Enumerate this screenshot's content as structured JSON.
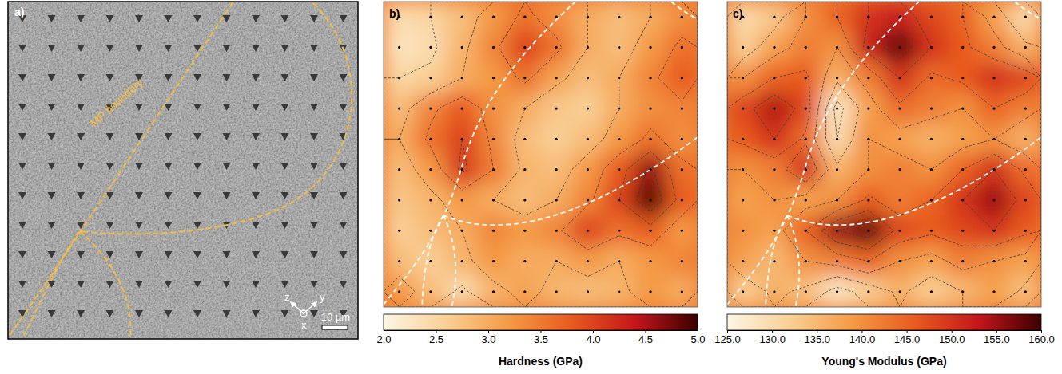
{
  "chart_data": [
    {
      "type": "image",
      "panel_label": "a)",
      "annotations": [
        "MP boundary"
      ],
      "axis_labels": [
        "z",
        "y",
        "x"
      ],
      "scale_bar": "10 µm"
    },
    {
      "type": "heatmap",
      "panel_label": "b)",
      "tick_labels": false,
      "z": [
        [
          2.4,
          2.5,
          2.8,
          3.2,
          3.6,
          3.3,
          3.0,
          2.8,
          3.0,
          3.3
        ],
        [
          2.3,
          2.4,
          2.9,
          3.4,
          4.0,
          3.6,
          3.0,
          2.8,
          3.2,
          3.6
        ],
        [
          2.5,
          2.6,
          3.0,
          3.2,
          3.6,
          3.1,
          2.8,
          3.0,
          3.4,
          3.8
        ],
        [
          2.8,
          3.4,
          3.8,
          3.3,
          3.0,
          2.7,
          2.6,
          3.0,
          3.3,
          3.4
        ],
        [
          3.0,
          3.6,
          4.0,
          3.4,
          2.8,
          2.6,
          2.8,
          3.2,
          3.6,
          3.3
        ],
        [
          2.8,
          3.2,
          4.1,
          3.5,
          2.9,
          2.8,
          3.2,
          3.8,
          4.6,
          3.6
        ],
        [
          2.7,
          2.9,
          3.2,
          3.0,
          2.8,
          3.0,
          3.4,
          4.0,
          4.9,
          3.8
        ],
        [
          2.6,
          2.8,
          3.0,
          3.4,
          3.2,
          3.4,
          4.0,
          3.6,
          3.8,
          3.2
        ],
        [
          2.8,
          2.6,
          2.9,
          3.2,
          3.0,
          3.0,
          3.2,
          3.0,
          3.2,
          3.4
        ],
        [
          3.2,
          2.8,
          2.4,
          2.9,
          3.1,
          2.9,
          2.8,
          2.9,
          3.2,
          3.0
        ]
      ],
      "contour_levels": [
        2.5,
        3.0,
        3.5,
        4.0,
        4.5
      ],
      "colorbar": {
        "label": "Hardness (GPa)",
        "range": [
          2,
          5
        ],
        "ticks": [
          {
            "value": 2,
            "label": "2.0"
          },
          {
            "value": 2.5,
            "label": "2.5"
          },
          {
            "value": 3,
            "label": "3.0"
          },
          {
            "value": 3.5,
            "label": "3.5"
          },
          {
            "value": 4,
            "label": "4.0"
          },
          {
            "value": 4.5,
            "label": "4.5"
          },
          {
            "value": 5,
            "label": "5.0"
          }
        ]
      }
    },
    {
      "type": "heatmap",
      "panel_label": "c)",
      "tick_labels": false,
      "z": [
        [
          130,
          133,
          140,
          145,
          150,
          152,
          148,
          145,
          138,
          130
        ],
        [
          132,
          138,
          142,
          140,
          152,
          158,
          150,
          146,
          142,
          136
        ],
        [
          140,
          145,
          146,
          136,
          142,
          150,
          144,
          146,
          150,
          148
        ],
        [
          148,
          154,
          148,
          128,
          138,
          144,
          142,
          140,
          145,
          142
        ],
        [
          146,
          150,
          144,
          130,
          140,
          138,
          136,
          138,
          140,
          136
        ],
        [
          140,
          142,
          150,
          136,
          140,
          142,
          140,
          145,
          150,
          144
        ],
        [
          138,
          140,
          138,
          140,
          146,
          142,
          145,
          150,
          155,
          148
        ],
        [
          140,
          138,
          145,
          155,
          158,
          148,
          146,
          148,
          150,
          146
        ],
        [
          138,
          135,
          140,
          142,
          145,
          140,
          138,
          142,
          140,
          138
        ],
        [
          132,
          136,
          134,
          128,
          132,
          136,
          132,
          135,
          138,
          134
        ]
      ],
      "contour_levels": [
        130,
        135,
        140,
        145,
        150,
        155
      ],
      "colorbar": {
        "label": "Young's Modulus (GPa)",
        "range": [
          125,
          160
        ],
        "ticks": [
          {
            "value": 125,
            "label": "125.0"
          },
          {
            "value": 130,
            "label": "130.0"
          },
          {
            "value": 135,
            "label": "135.0"
          },
          {
            "value": 140,
            "label": "140.0"
          },
          {
            "value": 145,
            "label": "145.0"
          },
          {
            "value": 150,
            "label": "150.0"
          },
          {
            "value": 155,
            "label": "155.0"
          },
          {
            "value": 160,
            "label": "160.0"
          }
        ]
      }
    }
  ]
}
